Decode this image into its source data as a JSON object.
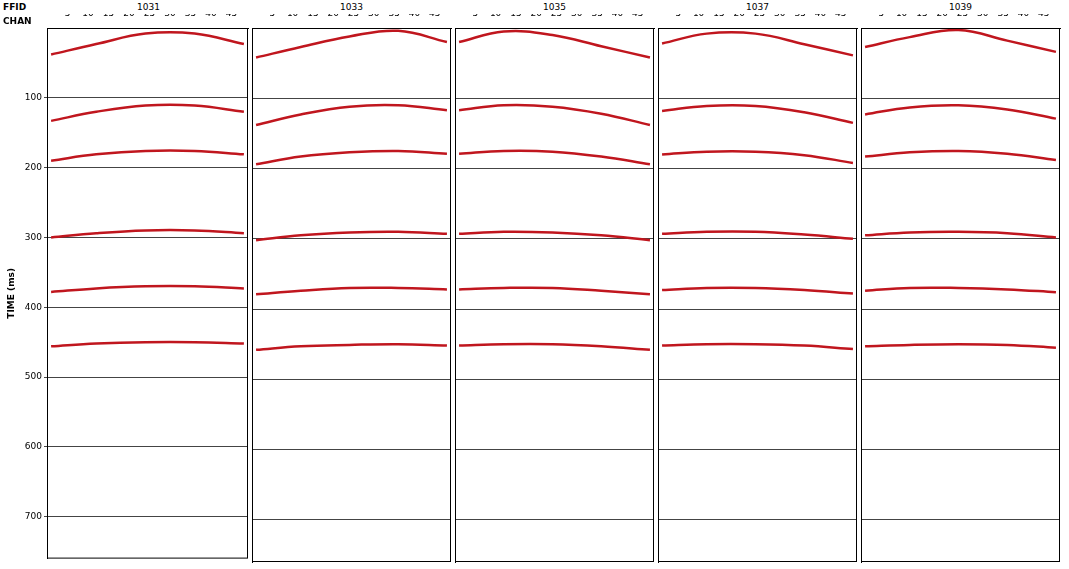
{
  "labels": {
    "ffid": "FFID",
    "chan": "CHAN"
  },
  "chart_data": [
    {
      "type": "line",
      "title": "1031",
      "y_label": "TIME (ms)",
      "color": "#c0161e",
      "grid": true,
      "x": [
        1,
        12,
        24,
        36,
        48
      ],
      "series": [
        {
          "values": [
            38,
            23,
            8,
            8,
            23
          ]
        },
        {
          "values": [
            133,
            120,
            111,
            111,
            120
          ]
        },
        {
          "values": [
            190,
            181,
            176,
            176,
            181
          ]
        },
        {
          "values": [
            300,
            294,
            290,
            290,
            294
          ]
        },
        {
          "values": [
            378,
            373,
            370,
            370,
            373
          ]
        },
        {
          "values": [
            456,
            452,
            450,
            450,
            452
          ]
        }
      ],
      "xlim": [
        0,
        49
      ],
      "xticks": [
        5,
        10,
        15,
        20,
        25,
        30,
        35,
        40,
        45
      ],
      "ylim": [
        0,
        760
      ],
      "yticks": [
        100,
        200,
        300,
        400,
        500,
        600,
        700
      ]
    },
    {
      "type": "line",
      "title": "1033",
      "color": "#c0161e",
      "grid": true,
      "tick_labels": "x",
      "x": [
        1,
        12,
        24,
        36,
        48
      ],
      "series": [
        {
          "values": [
            42,
            27,
            12,
            4,
            20
          ]
        },
        {
          "values": [
            138,
            123,
            112,
            110,
            117
          ]
        },
        {
          "values": [
            194,
            183,
            177,
            175,
            179
          ]
        },
        {
          "values": [
            302,
            295,
            291,
            290,
            293
          ]
        },
        {
          "values": [
            379,
            374,
            370,
            370,
            372
          ]
        },
        {
          "values": [
            458,
            453,
            451,
            450,
            452
          ]
        }
      ],
      "xlim": [
        0,
        49
      ],
      "xticks": [
        5,
        10,
        15,
        20,
        25,
        30,
        35,
        40,
        45
      ],
      "ylim": [
        0,
        760
      ],
      "yticks": [
        100,
        200,
        300,
        400,
        500,
        600,
        700
      ]
    },
    {
      "type": "line",
      "title": "1035",
      "color": "#c0161e",
      "grid": true,
      "tick_labels": "x",
      "x": [
        1,
        12,
        24,
        36,
        48
      ],
      "series": [
        {
          "values": [
            20,
            5,
            10,
            26,
            42
          ]
        },
        {
          "values": [
            117,
            110,
            112,
            122,
            138
          ]
        },
        {
          "values": [
            179,
            175,
            176,
            183,
            194
          ]
        },
        {
          "values": [
            293,
            290,
            291,
            295,
            302
          ]
        },
        {
          "values": [
            372,
            370,
            370,
            374,
            379
          ]
        },
        {
          "values": [
            452,
            450,
            450,
            453,
            458
          ]
        }
      ],
      "xlim": [
        0,
        49
      ],
      "xticks": [
        5,
        10,
        15,
        20,
        25,
        30,
        35,
        40,
        45
      ],
      "ylim": [
        0,
        760
      ],
      "yticks": [
        100,
        200,
        300,
        400,
        500,
        600,
        700
      ]
    },
    {
      "type": "line",
      "title": "1037",
      "color": "#c0161e",
      "grid": true,
      "tick_labels": "x",
      "x": [
        1,
        12,
        24,
        36,
        48
      ],
      "series": [
        {
          "values": [
            22,
            8,
            8,
            23,
            39
          ]
        },
        {
          "values": [
            118,
            111,
            111,
            120,
            135
          ]
        },
        {
          "values": [
            180,
            176,
            176,
            181,
            192
          ]
        },
        {
          "values": [
            293,
            290,
            290,
            294,
            300
          ]
        },
        {
          "values": [
            373,
            370,
            370,
            373,
            378
          ]
        },
        {
          "values": [
            452,
            450,
            450,
            452,
            457
          ]
        }
      ],
      "xlim": [
        0,
        49
      ],
      "xticks": [
        5,
        10,
        15,
        20,
        25,
        30,
        35,
        40,
        45
      ],
      "ylim": [
        0,
        760
      ],
      "yticks": [
        100,
        200,
        300,
        400,
        500,
        600,
        700
      ]
    },
    {
      "type": "line",
      "title": "1039",
      "color": "#c0161e",
      "grid": true,
      "tick_labels": "x",
      "x": [
        1,
        12,
        24,
        36,
        48
      ],
      "series": [
        {
          "values": [
            27,
            13,
            3,
            18,
            34
          ]
        },
        {
          "values": [
            123,
            113,
            110,
            116,
            129
          ]
        },
        {
          "values": [
            183,
            177,
            175,
            179,
            188
          ]
        },
        {
          "values": [
            295,
            291,
            290,
            292,
            298
          ]
        },
        {
          "values": [
            374,
            370,
            370,
            372,
            376
          ]
        },
        {
          "values": [
            453,
            451,
            450,
            451,
            455
          ]
        }
      ],
      "xlim": [
        0,
        49
      ],
      "xticks": [
        5,
        10,
        15,
        20,
        25,
        30,
        35,
        40,
        45
      ],
      "ylim": [
        0,
        760
      ],
      "yticks": [
        100,
        200,
        300,
        400,
        500,
        600,
        700
      ]
    }
  ]
}
